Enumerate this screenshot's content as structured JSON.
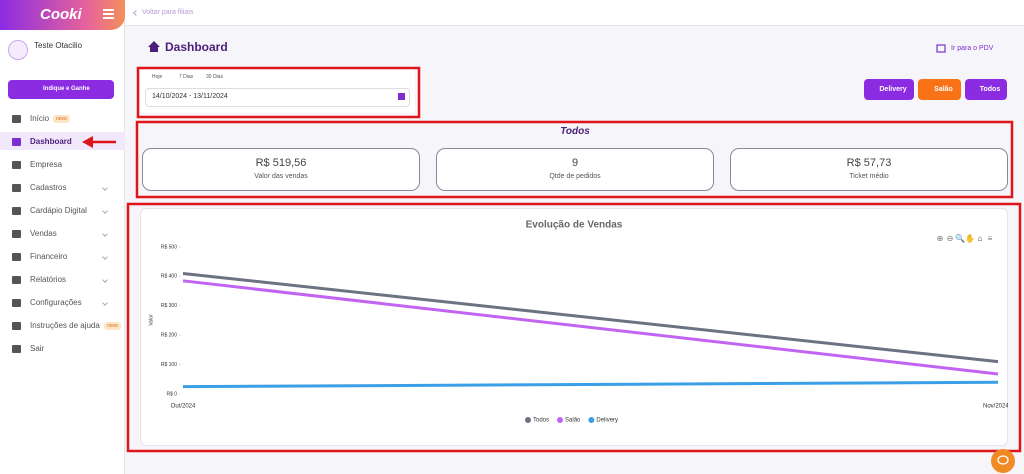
{
  "sidebar": {
    "logo": "Cooki",
    "user": "Teste Otacilio",
    "invite_button": "Indique e Ganhe",
    "menu": [
      {
        "label": "Início",
        "badge": "novo"
      },
      {
        "label": "Dashboard",
        "active": true
      },
      {
        "label": "Empresa"
      },
      {
        "label": "Cadastros",
        "expandable": true
      },
      {
        "label": "Cardápio Digital",
        "expandable": true
      },
      {
        "label": "Vendas",
        "expandable": true
      },
      {
        "label": "Financeiro",
        "expandable": true
      },
      {
        "label": "Relatórios",
        "expandable": true
      },
      {
        "label": "Configurações",
        "expandable": true
      },
      {
        "label": "Instruções de ajuda",
        "badge": "novo"
      },
      {
        "label": "Sair"
      }
    ]
  },
  "topbar": {
    "back_link": "Voltar para filiais"
  },
  "header": {
    "title": "Dashboard",
    "pdv_link": "Ir para o PDV"
  },
  "date_filter": {
    "presets": [
      "Hoje",
      "7 Dias",
      "30 Dias"
    ],
    "range": "14/10/2024 - 13/11/2024"
  },
  "channel_buttons": [
    {
      "label": "Delivery",
      "color": "#8b2be2"
    },
    {
      "label": "Salão",
      "color": "#f97316"
    },
    {
      "label": "Todos",
      "color": "#8b2be2"
    }
  ],
  "summary": {
    "title": "Todos",
    "cards": [
      {
        "value": "R$ 519,56",
        "label": "Valor das vendas"
      },
      {
        "value": "9",
        "label": "Qtde de pedidos"
      },
      {
        "value": "R$ 57,73",
        "label": "Ticket médio"
      }
    ]
  },
  "chart_data": {
    "type": "line",
    "title": "Evolução de Vendas",
    "y_label": "Valor",
    "categories": [
      "Out/2024",
      "Nov/2024"
    ],
    "series": [
      {
        "name": "Todos",
        "color": "#6b7282",
        "values": [
          410,
          110
        ]
      },
      {
        "name": "Salão",
        "color": "#c264f2",
        "values": [
          385,
          68
        ]
      },
      {
        "name": "Delivery",
        "color": "#3b9fe8",
        "values": [
          25,
          40
        ]
      }
    ],
    "ylim": [
      0,
      500
    ],
    "yticks": [
      {
        "value": 0,
        "label": "R$ 0"
      },
      {
        "value": 100,
        "label": "R$ 100"
      },
      {
        "value": 200,
        "label": "R$ 200"
      },
      {
        "value": 300,
        "label": "R$ 300"
      },
      {
        "value": 400,
        "label": "R$ 400"
      },
      {
        "value": 500,
        "label": "R$ 500"
      }
    ],
    "legend": "bottom"
  }
}
